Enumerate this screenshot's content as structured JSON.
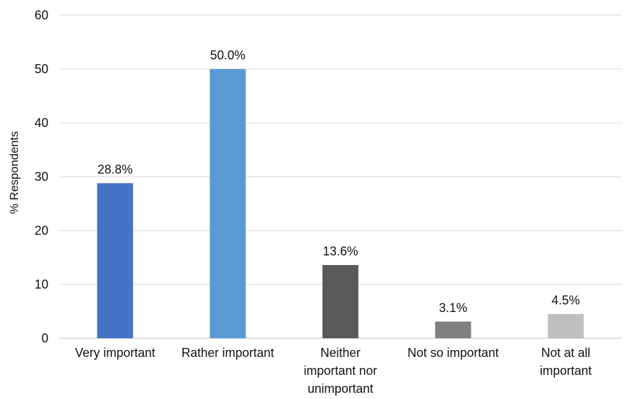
{
  "chart_data": {
    "type": "bar",
    "title": "",
    "xlabel": "",
    "ylabel": "% Respondents",
    "ylim": [
      0,
      60
    ],
    "yticks": [
      0,
      10,
      20,
      30,
      40,
      50,
      60
    ],
    "grid": true,
    "legend": "none",
    "categories": [
      [
        "Very important"
      ],
      [
        "Rather important"
      ],
      [
        "Neither",
        "important nor",
        "unimportant"
      ],
      [
        "Not so important"
      ],
      [
        "Not at all",
        "important"
      ]
    ],
    "values": [
      28.8,
      50.0,
      13.6,
      3.1,
      4.5
    ],
    "data_labels": [
      "28.8%",
      "50.0%",
      "13.6%",
      "3.1%",
      "4.5%"
    ],
    "colors": [
      "#4472c4",
      "#5b9bd5",
      "#595959",
      "#7f7f7f",
      "#bfbfbf"
    ]
  }
}
